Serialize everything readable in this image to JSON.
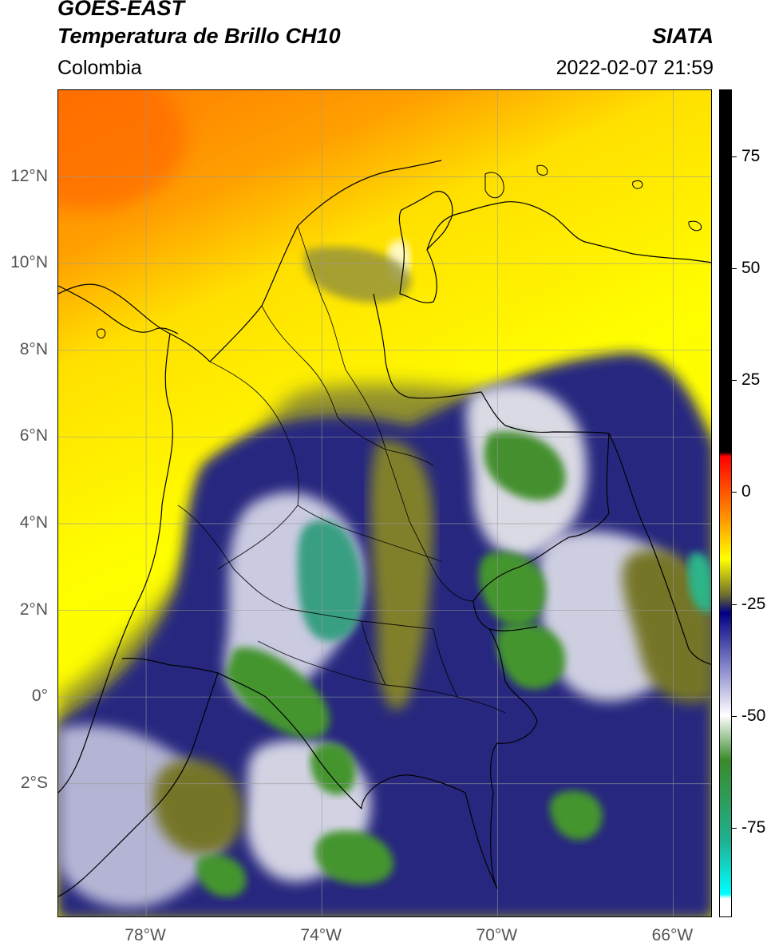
{
  "header": {
    "satellite": "GOES-EAST",
    "product": "Temperatura de Brillo CH10",
    "brand": "SIATA",
    "region": "Colombia",
    "timestamp": "2022-02-07 21:59"
  },
  "map": {
    "lon_range": [
      -80.0,
      -65.1
    ],
    "lat_range": [
      -5.1,
      14.0
    ],
    "lat_ticks": [
      {
        "value": 12,
        "label": "12°N"
      },
      {
        "value": 10,
        "label": "10°N"
      },
      {
        "value": 8,
        "label": "8°N"
      },
      {
        "value": 6,
        "label": "6°N"
      },
      {
        "value": 4,
        "label": "4°N"
      },
      {
        "value": 2,
        "label": "2°N"
      },
      {
        "value": 0,
        "label": "0°"
      },
      {
        "value": -2,
        "label": "2°S"
      }
    ],
    "lon_ticks": [
      {
        "value": -78,
        "label": "78°W"
      },
      {
        "value": -74,
        "label": "74°W"
      },
      {
        "value": -70,
        "label": "70°W"
      },
      {
        "value": -66,
        "label": "66°W"
      }
    ],
    "gridlines": true
  },
  "colorbar": {
    "range": [
      -95,
      90
    ],
    "ticks": [
      {
        "value": 75,
        "label": "75"
      },
      {
        "value": 50,
        "label": "50"
      },
      {
        "value": 25,
        "label": "25"
      },
      {
        "value": 0,
        "label": "0"
      },
      {
        "value": -25,
        "label": "-25"
      },
      {
        "value": -50,
        "label": "-50"
      },
      {
        "value": -75,
        "label": "-75"
      }
    ],
    "stops": [
      {
        "value": 90,
        "color": "#000000"
      },
      {
        "value": 9,
        "color": "#000000"
      },
      {
        "value": 8,
        "color": "#ff0000"
      },
      {
        "value": -5,
        "color": "#ff8c00"
      },
      {
        "value": -15,
        "color": "#ffff00"
      },
      {
        "value": -23,
        "color": "#6e6e2e"
      },
      {
        "value": -27,
        "color": "#000080"
      },
      {
        "value": -40,
        "color": "#9090d0"
      },
      {
        "value": -50,
        "color": "#ffffff"
      },
      {
        "value": -60,
        "color": "#3a8a2a"
      },
      {
        "value": -78,
        "color": "#20b090"
      },
      {
        "value": -90,
        "color": "#00ffff"
      },
      {
        "value": -91,
        "color": "#ffffff"
      },
      {
        "value": -95,
        "color": "#ffffff"
      }
    ]
  }
}
